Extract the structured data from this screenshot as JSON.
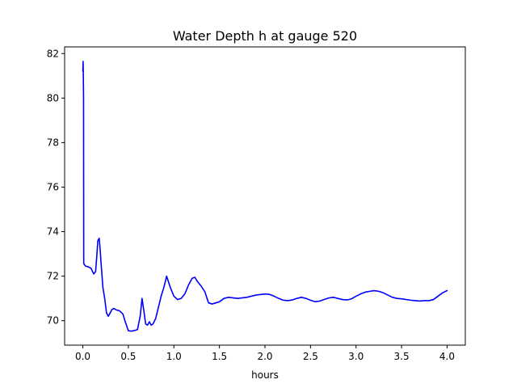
{
  "chart_data": {
    "type": "line",
    "title": "Water Depth h at gauge 520",
    "xlabel": "hours",
    "ylabel": "",
    "xlim": [
      -0.2,
      4.2
    ],
    "ylim": [
      68.9,
      82.3
    ],
    "grid": false,
    "legend": "none",
    "xticks": [
      0.0,
      0.5,
      1.0,
      1.5,
      2.0,
      2.5,
      3.0,
      3.5,
      4.0
    ],
    "xtick_labels": [
      "0.0",
      "0.5",
      "1.0",
      "1.5",
      "2.0",
      "2.5",
      "3.0",
      "3.5",
      "4.0"
    ],
    "yticks": [
      70,
      72,
      74,
      76,
      78,
      80,
      82
    ],
    "ytick_labels": [
      "70",
      "72",
      "74",
      "76",
      "78",
      "80",
      "82"
    ],
    "series": [
      {
        "color": "#0000ff",
        "x": [
          0.0,
          0.003,
          0.005,
          0.008,
          0.01,
          0.012,
          0.03,
          0.06,
          0.09,
          0.12,
          0.14,
          0.155,
          0.165,
          0.18,
          0.19,
          0.2,
          0.22,
          0.24,
          0.26,
          0.28,
          0.3,
          0.32,
          0.34,
          0.37,
          0.4,
          0.44,
          0.47,
          0.5,
          0.53,
          0.56,
          0.6,
          0.63,
          0.65,
          0.67,
          0.69,
          0.71,
          0.73,
          0.75,
          0.77,
          0.8,
          0.83,
          0.86,
          0.89,
          0.92,
          0.96,
          1.0,
          1.04,
          1.08,
          1.12,
          1.16,
          1.2,
          1.23,
          1.26,
          1.3,
          1.34,
          1.38,
          1.42,
          1.46,
          1.5,
          1.55,
          1.6,
          1.7,
          1.8,
          1.9,
          2.0,
          2.05,
          2.1,
          2.15,
          2.2,
          2.25,
          2.3,
          2.35,
          2.4,
          2.45,
          2.5,
          2.55,
          2.6,
          2.65,
          2.7,
          2.75,
          2.8,
          2.85,
          2.9,
          2.95,
          3.0,
          3.05,
          3.1,
          3.15,
          3.2,
          3.25,
          3.3,
          3.35,
          3.4,
          3.45,
          3.5,
          3.55,
          3.6,
          3.65,
          3.7,
          3.75,
          3.8,
          3.85,
          3.9,
          3.95,
          4.0
        ],
        "y": [
          81.2,
          81.65,
          81.1,
          80.0,
          72.6,
          72.55,
          72.45,
          72.42,
          72.35,
          72.1,
          72.2,
          73.0,
          73.6,
          73.7,
          73.2,
          72.6,
          71.5,
          71.0,
          70.35,
          70.2,
          70.35,
          70.5,
          70.55,
          70.48,
          70.45,
          70.3,
          69.9,
          69.55,
          69.53,
          69.55,
          69.6,
          70.2,
          71.0,
          70.45,
          69.85,
          69.8,
          69.95,
          69.8,
          69.85,
          70.1,
          70.6,
          71.1,
          71.5,
          72.0,
          71.5,
          71.1,
          70.95,
          71.0,
          71.2,
          71.6,
          71.9,
          71.95,
          71.75,
          71.55,
          71.3,
          70.8,
          70.75,
          70.8,
          70.85,
          71.0,
          71.05,
          71.0,
          71.05,
          71.15,
          71.2,
          71.18,
          71.1,
          71.0,
          70.92,
          70.9,
          70.93,
          71.0,
          71.05,
          71.0,
          70.92,
          70.85,
          70.88,
          70.95,
          71.02,
          71.05,
          71.0,
          70.95,
          70.93,
          70.98,
          71.1,
          71.2,
          71.28,
          71.32,
          71.35,
          71.32,
          71.25,
          71.15,
          71.05,
          71.0,
          70.98,
          70.95,
          70.92,
          70.9,
          70.88,
          70.9,
          70.9,
          70.95,
          71.1,
          71.25,
          71.35
        ]
      }
    ]
  }
}
